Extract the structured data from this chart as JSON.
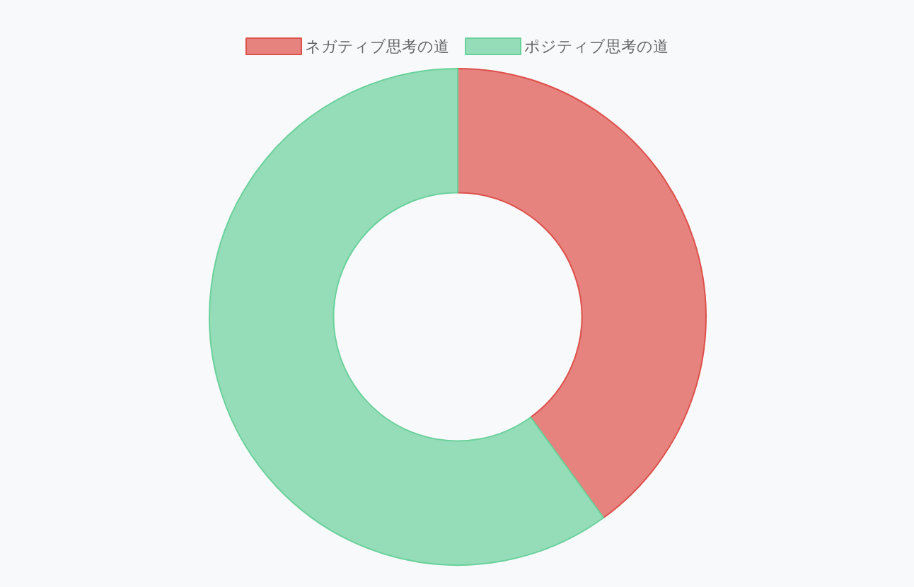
{
  "chart_data": {
    "type": "donut",
    "categories": [
      "ネガティブ思考の道",
      "ポジティブ思考の道"
    ],
    "values": [
      40,
      60
    ],
    "colors": [
      "#e6837f",
      "#95ddb8"
    ],
    "legend": "top"
  }
}
